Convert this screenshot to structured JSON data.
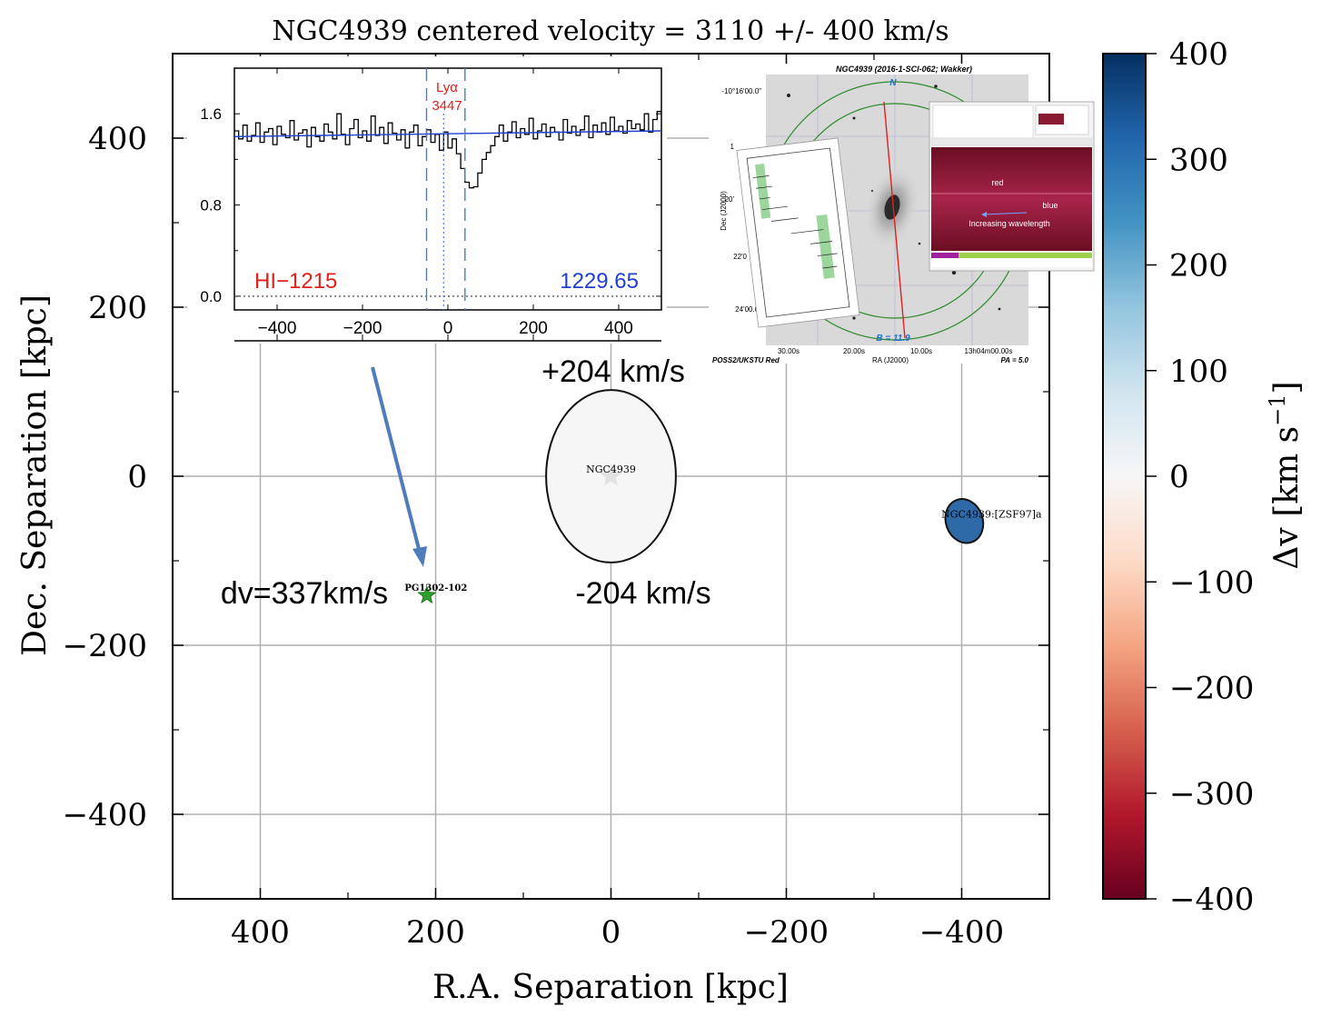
{
  "chart_data": {
    "type": "scatter",
    "title": "NGC4939 centered velocity = 3110 +/- 400 km/s",
    "xlabel": "R.A. Separation [kpc]",
    "ylabel": "Dec. Separation [kpc]",
    "xlim": [
      500,
      -500
    ],
    "ylim": [
      -500,
      500
    ],
    "x_reversed": true,
    "xticks": [
      400,
      200,
      0,
      -200,
      -400
    ],
    "yticks": [
      400,
      200,
      0,
      -200,
      -400
    ],
    "xtick_labels": [
      "400",
      "200",
      "0",
      "−200",
      "−400"
    ],
    "ytick_labels": [
      "400",
      "200",
      "0",
      "−200",
      "−400"
    ],
    "grid": true,
    "galaxies": [
      {
        "label": "NGC4939",
        "x": 0,
        "y": 0,
        "dv": 0,
        "major_kpc": 148,
        "minor_kpc": 204,
        "color": "#f6f6f6"
      },
      {
        "label": "NGC4939:[ZSF97]a",
        "x": -403,
        "y": -53,
        "dv": 290,
        "major_kpc": 42,
        "minor_kpc": 53,
        "color": "#2e6aa8"
      }
    ],
    "targets": [
      {
        "label": "PG1302-102",
        "x": 210,
        "y": -141,
        "color": "#2ca02c",
        "marker": "star"
      }
    ],
    "annotations": {
      "upper_velocity": "+204 km/s",
      "lower_velocity": "-204 km/s",
      "dv_label": "dv=337km/s"
    },
    "colorbar": {
      "label": "Δv [km s",
      "label_exp": "−1",
      "label_close": "]",
      "range": [
        -400,
        400
      ],
      "ticks": [
        400,
        300,
        200,
        100,
        0,
        -100,
        -200,
        -300,
        -400
      ],
      "tick_labels": [
        "400",
        "300",
        "200",
        "100",
        "0",
        "−100",
        "−200",
        "−300",
        "−400"
      ],
      "colormap": "RdBu",
      "stops": [
        "#67001f",
        "#b2182b",
        "#d6604d",
        "#f4a582",
        "#fddbc7",
        "#f7f7f7",
        "#d1e5f0",
        "#92c5de",
        "#4393c3",
        "#2166ac",
        "#053061"
      ]
    },
    "inset_spectrum": {
      "type": "line",
      "xlim": [
        -500,
        500
      ],
      "ylim": [
        -0.12,
        2.0
      ],
      "xticks": [
        -400,
        -200,
        0,
        200,
        400
      ],
      "xtick_labels": [
        "−400",
        "−200",
        "0",
        "200",
        "400"
      ],
      "yticks": [
        0.0,
        0.8,
        1.6
      ],
      "ytick_labels": [
        "0.0",
        "0.8",
        "1.6"
      ],
      "line_id": "Lyα",
      "line_wavelength": "3447",
      "species": "HI−1215",
      "rest_wavelength": "1229.65",
      "window": [
        -50,
        40
      ],
      "center": -10,
      "continuum": [
        1.4,
        1.45
      ],
      "flux": [
        1.45,
        1.38,
        1.5,
        1.36,
        1.41,
        1.52,
        1.35,
        1.44,
        1.47,
        1.33,
        1.49,
        1.42,
        1.39,
        1.54,
        1.37,
        1.43,
        1.46,
        1.31,
        1.48,
        1.4,
        1.36,
        1.51,
        1.44,
        1.38,
        1.6,
        1.42,
        1.33,
        1.47,
        1.55,
        1.39,
        1.45,
        1.36,
        1.58,
        1.41,
        1.48,
        1.34,
        1.52,
        1.43,
        1.37,
        1.46,
        1.3,
        1.44,
        1.5,
        1.32,
        1.4,
        1.46,
        1.35,
        1.42,
        1.28,
        1.44,
        1.3,
        1.38,
        1.25,
        1.12,
        1.0,
        0.95,
        0.96,
        1.08,
        1.2,
        1.26,
        1.32,
        1.4,
        1.5,
        1.36,
        1.44,
        1.53,
        1.39,
        1.47,
        1.42,
        1.56,
        1.38,
        1.45,
        1.51,
        1.4,
        1.48,
        1.44,
        1.37,
        1.55,
        1.43,
        1.49,
        1.41,
        1.46,
        1.58,
        1.39,
        1.5,
        1.44,
        1.52,
        1.42,
        1.57,
        1.45,
        1.49,
        1.43,
        1.54,
        1.47,
        1.51,
        1.46,
        1.6,
        1.44,
        1.55,
        1.62
      ]
    },
    "inset_image": {
      "title": "NGC4939 (2016-1-SCI-062; Wakker)",
      "north": "N",
      "scale": "B = 11.9",
      "survey": "POSS2/UKSTU Red",
      "pa": "PA = 5.0",
      "xlabel": "RA (J2000)",
      "ylabel": "Dec (J2000)",
      "ra_ticks": [
        "30.00s",
        "20.00s",
        "10.00s",
        "13h04m00.00s"
      ],
      "dec_ticks": [
        "-10°16'00.0\"",
        "1",
        "20'",
        "22'0",
        "24'00.0\""
      ],
      "panel_labels": [
        "red",
        "blue",
        "Increasing wavelength"
      ]
    }
  }
}
